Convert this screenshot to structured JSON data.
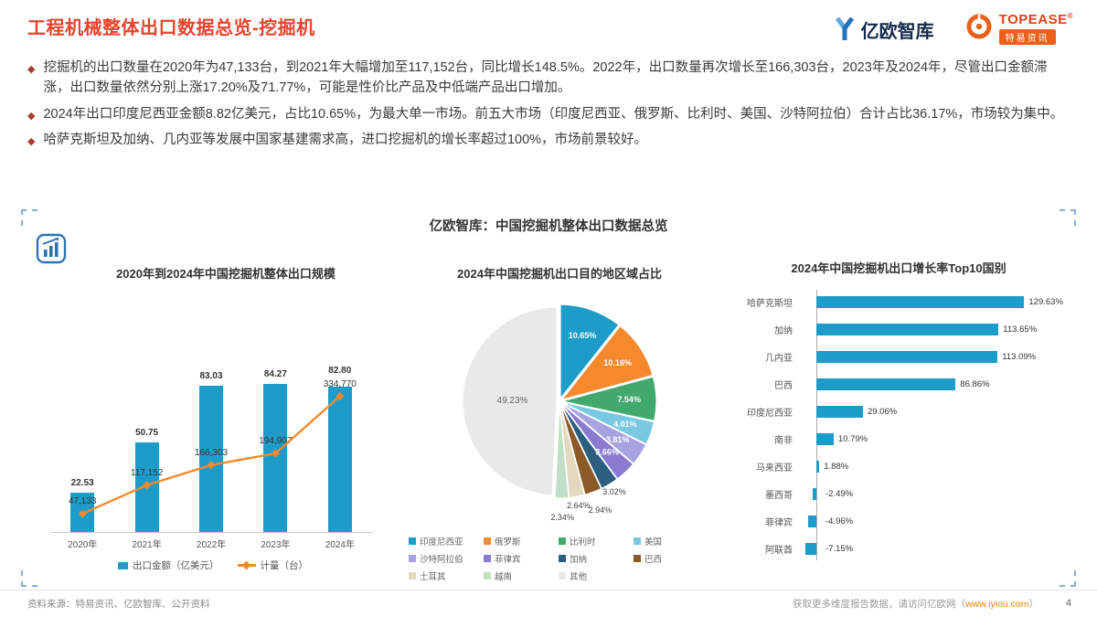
{
  "header": {
    "title": "工程机械整体出口数据总览-挖掘机",
    "logo_eo": "亿欧智库",
    "logo_topease": "TOPEASE",
    "logo_topease_reg": "®",
    "logo_topease_sub": "特易资讯"
  },
  "bullets": [
    "挖掘机的出口数量在2020年为47,133台，到2021年大幅增加至117,152台，同比增长148.5%。2022年，出口数量再次增长至166,303台，2023年及2024年，尽管出口金额滞涨，出口数量依然分别上涨17.20%及71.77%，可能是性价比产品及中低端产品出口增加。",
    "2024年出口印度尼西亚金额8.82亿美元，占比10.65%，为最大单一市场。前五大市场（印度尼西亚、俄罗斯、比利时、美国、沙特阿拉伯）合计占比36.17%，市场较为集中。",
    "哈萨克斯坦及加纳、几内亚等发展中国家基建需求高，进口挖掘机的增长率超过100%，市场前景较好。"
  ],
  "panel": {
    "title": "亿欧智库：中国挖掘机整体出口数据总览"
  },
  "chart_data": [
    {
      "type": "bar",
      "title": "2020年到2024年中国挖掘机整体出口规模",
      "categories": [
        "2020年",
        "2021年",
        "2022年",
        "2023年",
        "2024年"
      ],
      "series": [
        {
          "name": "出口金额（亿美元）",
          "kind": "bar",
          "color": "#1E9CC9",
          "values": [
            22.53,
            50.75,
            83.03,
            84.27,
            82.8
          ],
          "labels": [
            "22.53",
            "50.75",
            "83.03",
            "84.27",
            "82.80"
          ]
        },
        {
          "name": "计量（台）",
          "kind": "line",
          "color": "#F5892D",
          "values": [
            47133,
            117152,
            166303,
            194907,
            334770
          ],
          "labels": [
            "47,133",
            "117,152",
            "166,303",
            "194,907",
            "334,770"
          ]
        }
      ],
      "bar_axis_max": 130,
      "line_axis_max": 560000,
      "legend_position": "bottom"
    },
    {
      "type": "pie",
      "title": "2024年中国挖掘机出口目的地区域占比",
      "slices": [
        {
          "label": "印度尼西亚",
          "value": 10.65,
          "pct": "10.65%",
          "color": "#1E9CC9"
        },
        {
          "label": "俄罗斯",
          "value": 10.16,
          "pct": "10.16%",
          "color": "#F5892D"
        },
        {
          "label": "比利时",
          "value": 7.54,
          "pct": "7.54%",
          "color": "#41A86E"
        },
        {
          "label": "美国",
          "value": 4.01,
          "pct": "4.01%",
          "color": "#77C8E0"
        },
        {
          "label": "沙特阿拉伯",
          "value": 3.81,
          "pct": "3.81%",
          "color": "#A7A3E0"
        },
        {
          "label": "菲律宾",
          "value": 3.66,
          "pct": "3.66%",
          "color": "#8A7BD1"
        },
        {
          "label": "加纳",
          "value": 3.02,
          "pct": "3.02%",
          "color": "#2A5F7F"
        },
        {
          "label": "巴西",
          "value": 2.94,
          "pct": "2.94%",
          "color": "#8A5A28"
        },
        {
          "label": "土耳其",
          "value": 2.64,
          "pct": "2.64%",
          "color": "#E4D9BF"
        },
        {
          "label": "越南",
          "value": 2.34,
          "pct": "2.34%",
          "color": "#BFE0C6"
        },
        {
          "label": "其他",
          "value": 49.23,
          "pct": "49.23%",
          "color": "#E9E9E9"
        }
      ]
    },
    {
      "type": "bar-horizontal",
      "title": "2024年中国挖掘机出口增长率Top10国别",
      "categories": [
        "哈萨克斯坦",
        "加纳",
        "几内亚",
        "巴西",
        "印度尼西亚",
        "南非",
        "马来西亚",
        "墨西哥",
        "菲律宾",
        "阿联酋"
      ],
      "values": [
        129.63,
        113.65,
        113.09,
        86.86,
        29.06,
        10.79,
        1.88,
        -2.49,
        -4.96,
        -7.15
      ],
      "labels": [
        "129.63%",
        "113.65%",
        "113.09%",
        "86.86%",
        "29.06%",
        "10.79%",
        "1.88%",
        "-2.49%",
        "-4.96%",
        "-7.15%"
      ],
      "bar_color": "#1E9CC9",
      "axis_max": 130
    }
  ],
  "footer": {
    "source": "资料来源：特易资讯、亿欧智库、公开资料",
    "note_prefix": "获取更多维度报告数据，请访问亿欧网（",
    "note_link": "www.iyiou.com",
    "note_suffix": "）",
    "page_number": "4"
  },
  "colors": {
    "accent_red": "#E8432D",
    "bar_teal": "#1E9CC9",
    "line_orange": "#F5892D"
  }
}
